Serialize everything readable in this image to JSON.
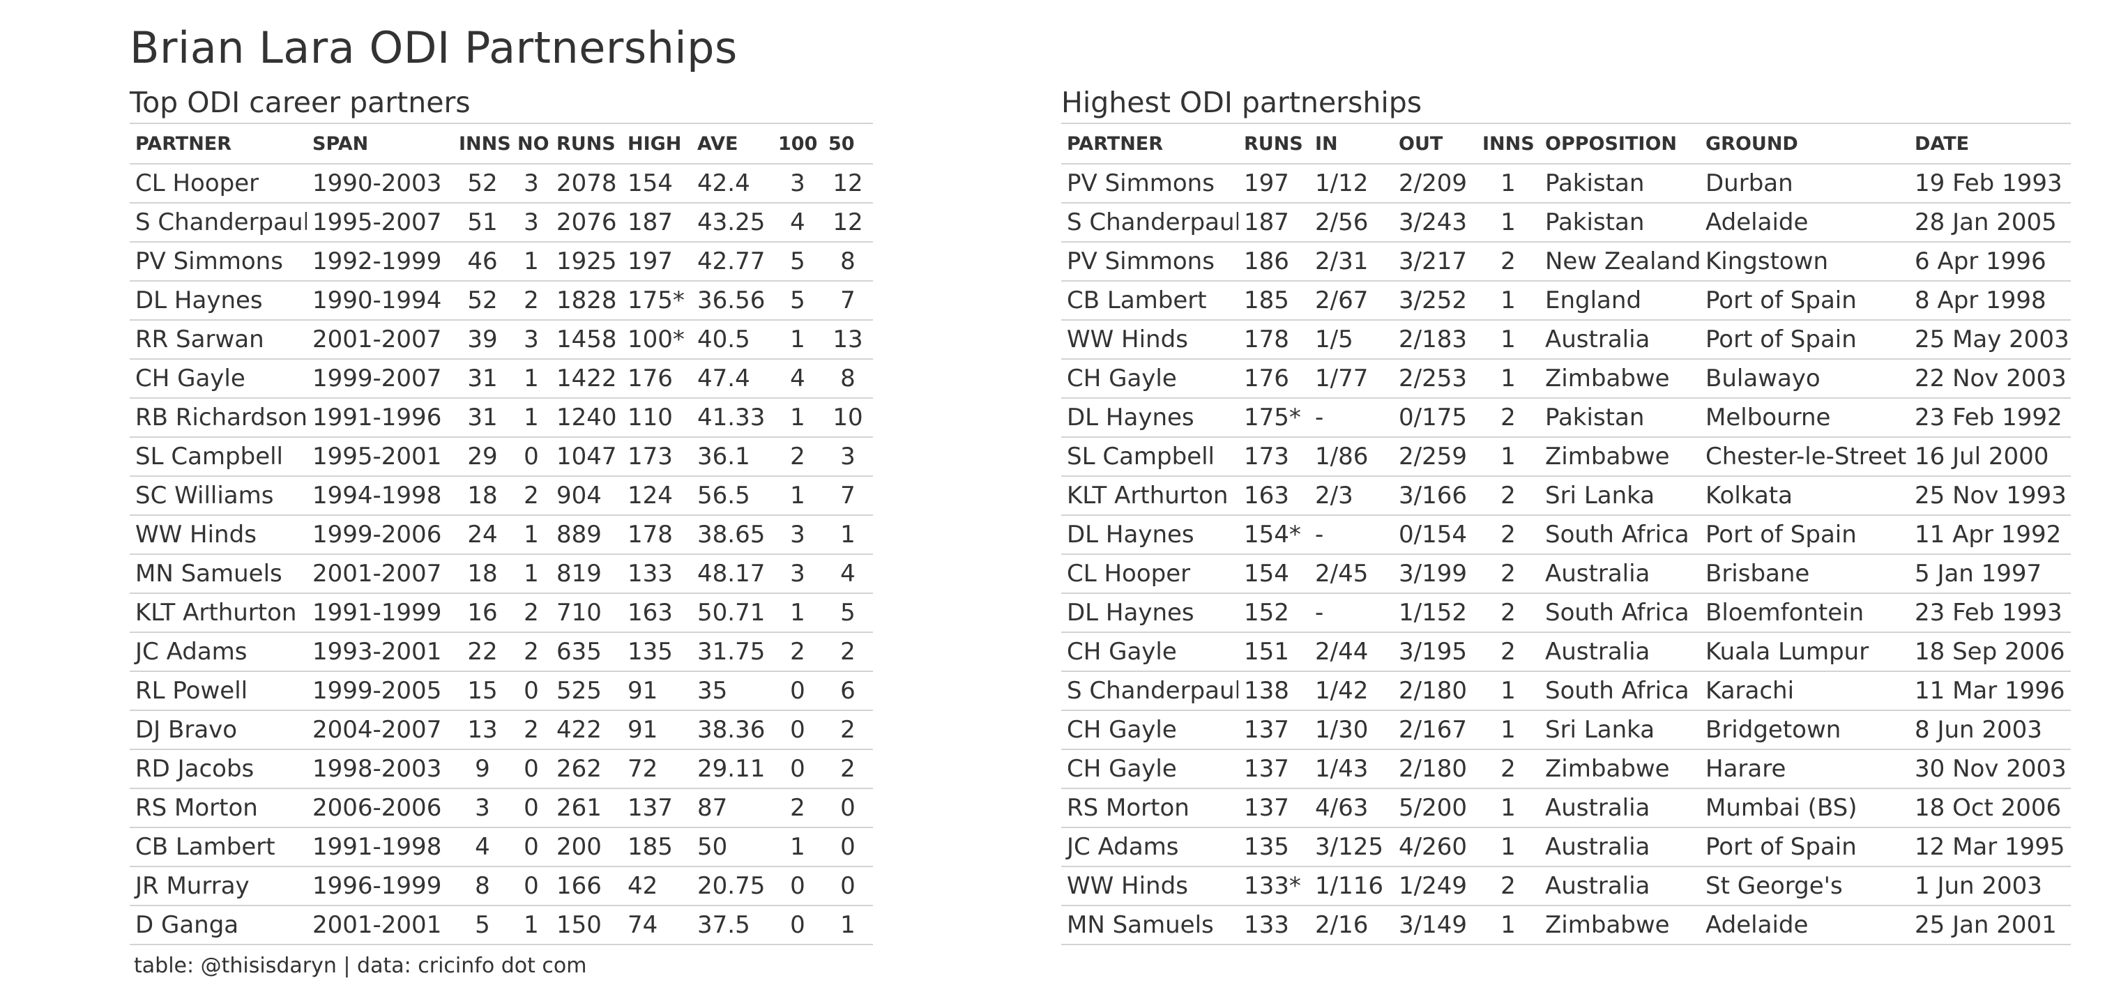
{
  "title": "Brian Lara ODI Partnerships",
  "left_table": {
    "title": "Top ODI career partners",
    "headers": [
      "PARTNER",
      "SPAN",
      "INNS",
      "NO",
      "RUNS",
      "HIGH",
      "AVE",
      "100",
      "50"
    ],
    "rows": [
      [
        "CL Hooper",
        "1990-2003",
        "52",
        "3",
        "2078",
        "154",
        "42.4",
        "3",
        "12"
      ],
      [
        "S Chanderpaul",
        "1995-2007",
        "51",
        "3",
        "2076",
        "187",
        "43.25",
        "4",
        "12"
      ],
      [
        "PV Simmons",
        "1992-1999",
        "46",
        "1",
        "1925",
        "197",
        "42.77",
        "5",
        "8"
      ],
      [
        "DL Haynes",
        "1990-1994",
        "52",
        "2",
        "1828",
        "175*",
        "36.56",
        "5",
        "7"
      ],
      [
        "RR Sarwan",
        "2001-2007",
        "39",
        "3",
        "1458",
        "100*",
        "40.5",
        "1",
        "13"
      ],
      [
        "CH Gayle",
        "1999-2007",
        "31",
        "1",
        "1422",
        "176",
        "47.4",
        "4",
        "8"
      ],
      [
        "RB Richardson",
        "1991-1996",
        "31",
        "1",
        "1240",
        "110",
        "41.33",
        "1",
        "10"
      ],
      [
        "SL Campbell",
        "1995-2001",
        "29",
        "0",
        "1047",
        "173",
        "36.1",
        "2",
        "3"
      ],
      [
        "SC Williams",
        "1994-1998",
        "18",
        "2",
        "904",
        "124",
        "56.5",
        "1",
        "7"
      ],
      [
        "WW Hinds",
        "1999-2006",
        "24",
        "1",
        "889",
        "178",
        "38.65",
        "3",
        "1"
      ],
      [
        "MN Samuels",
        "2001-2007",
        "18",
        "1",
        "819",
        "133",
        "48.17",
        "3",
        "4"
      ],
      [
        "KLT Arthurton",
        "1991-1999",
        "16",
        "2",
        "710",
        "163",
        "50.71",
        "1",
        "5"
      ],
      [
        "JC Adams",
        "1993-2001",
        "22",
        "2",
        "635",
        "135",
        "31.75",
        "2",
        "2"
      ],
      [
        "RL Powell",
        "1999-2005",
        "15",
        "0",
        "525",
        "91",
        "35",
        "0",
        "6"
      ],
      [
        "DJ Bravo",
        "2004-2007",
        "13",
        "2",
        "422",
        "91",
        "38.36",
        "0",
        "2"
      ],
      [
        "RD Jacobs",
        "1998-2003",
        "9",
        "0",
        "262",
        "72",
        "29.11",
        "0",
        "2"
      ],
      [
        "RS Morton",
        "2006-2006",
        "3",
        "0",
        "261",
        "137",
        "87",
        "2",
        "0"
      ],
      [
        "CB Lambert",
        "1991-1998",
        "4",
        "0",
        "200",
        "185",
        "50",
        "1",
        "0"
      ],
      [
        "JR Murray",
        "1996-1999",
        "8",
        "0",
        "166",
        "42",
        "20.75",
        "0",
        "0"
      ],
      [
        "D Ganga",
        "2001-2001",
        "5",
        "1",
        "150",
        "74",
        "37.5",
        "0",
        "1"
      ]
    ]
  },
  "right_table": {
    "title": "Highest ODI partnerships",
    "headers": [
      "PARTNER",
      "RUNS",
      "IN",
      "OUT",
      "INNS",
      "OPPOSITION",
      "GROUND",
      "DATE"
    ],
    "rows": [
      [
        "PV Simmons",
        "197",
        "1/12",
        "2/209",
        "1",
        "Pakistan",
        "Durban",
        "19 Feb 1993"
      ],
      [
        "S Chanderpaul",
        "187",
        "2/56",
        "3/243",
        "1",
        "Pakistan",
        "Adelaide",
        "28 Jan 2005"
      ],
      [
        "PV Simmons",
        "186",
        "2/31",
        "3/217",
        "2",
        "New Zealand",
        "Kingstown",
        "6 Apr 1996"
      ],
      [
        "CB Lambert",
        "185",
        "2/67",
        "3/252",
        "1",
        "England",
        "Port of Spain",
        "8 Apr 1998"
      ],
      [
        "WW Hinds",
        "178",
        "1/5",
        "2/183",
        "1",
        "Australia",
        "Port of Spain",
        "25 May 2003"
      ],
      [
        "CH Gayle",
        "176",
        "1/77",
        "2/253",
        "1",
        "Zimbabwe",
        "Bulawayo",
        "22 Nov 2003"
      ],
      [
        "DL Haynes",
        "175*",
        "-",
        "0/175",
        "2",
        "Pakistan",
        "Melbourne",
        "23 Feb 1992"
      ],
      [
        "SL Campbell",
        "173",
        "1/86",
        "2/259",
        "1",
        "Zimbabwe",
        "Chester-le-Street",
        "16 Jul 2000"
      ],
      [
        "KLT Arthurton",
        "163",
        "2/3",
        "3/166",
        "2",
        "Sri Lanka",
        "Kolkata",
        "25 Nov 1993"
      ],
      [
        "DL Haynes",
        "154*",
        "-",
        "0/154",
        "2",
        "South Africa",
        "Port of Spain",
        "11 Apr 1992"
      ],
      [
        "CL Hooper",
        "154",
        "2/45",
        "3/199",
        "2",
        "Australia",
        "Brisbane",
        "5 Jan 1997"
      ],
      [
        "DL Haynes",
        "152",
        "-",
        "1/152",
        "2",
        "South Africa",
        "Bloemfontein",
        "23 Feb 1993"
      ],
      [
        "CH Gayle",
        "151",
        "2/44",
        "3/195",
        "2",
        "Australia",
        "Kuala Lumpur",
        "18 Sep 2006"
      ],
      [
        "S Chanderpaul",
        "138",
        "1/42",
        "2/180",
        "1",
        "South Africa",
        "Karachi",
        "11 Mar 1996"
      ],
      [
        "CH Gayle",
        "137",
        "1/30",
        "2/167",
        "1",
        "Sri Lanka",
        "Bridgetown",
        "8 Jun 2003"
      ],
      [
        "CH Gayle",
        "137",
        "1/43",
        "2/180",
        "2",
        "Zimbabwe",
        "Harare",
        "30 Nov 2003"
      ],
      [
        "RS Morton",
        "137",
        "4/63",
        "5/200",
        "1",
        "Australia",
        "Mumbai (BS)",
        "18 Oct 2006"
      ],
      [
        "JC Adams",
        "135",
        "3/125",
        "4/260",
        "1",
        "Australia",
        "Port of Spain",
        "12 Mar 1995"
      ],
      [
        "WW Hinds",
        "133*",
        "1/116",
        "1/249",
        "2",
        "Australia",
        "St George's",
        "1 Jun 2003"
      ],
      [
        "MN Samuels",
        "133",
        "2/16",
        "3/149",
        "1",
        "Zimbabwe",
        "Adelaide",
        "25 Jan 2001"
      ]
    ]
  },
  "footer": "table: @thisisdaryn | data: cricinfo dot com"
}
